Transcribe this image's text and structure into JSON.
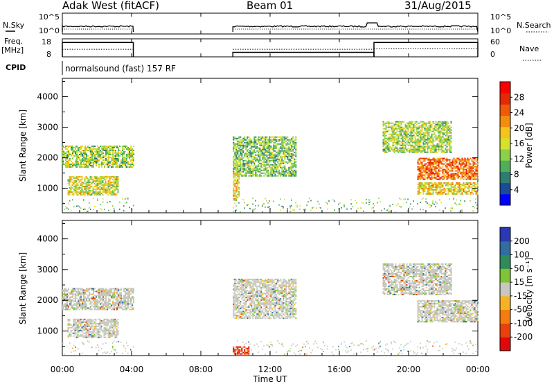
{
  "header": {
    "radar": "Adak West (fitACF)",
    "beam": "Beam 01",
    "date": "31/Aug/2015"
  },
  "side_labels": {
    "nsky": "N.Sky",
    "freq_line1": "Freq.",
    "freq_line2": "[MHz]",
    "cpid": "CPID",
    "nsearch": "N.Search",
    "nave": "Nave"
  },
  "ticks": {
    "nsky_left": [
      "10^5",
      "10^0"
    ],
    "nsky_right": [
      "10^5",
      "10^0"
    ],
    "freq_left": [
      "18",
      "8"
    ],
    "nave_right": [
      "60",
      "0"
    ],
    "range": [
      "1000",
      "2000",
      "3000",
      "4000"
    ],
    "time": [
      "00:00",
      "04:00",
      "08:00",
      "12:00",
      "16:00",
      "20:00",
      "00:00"
    ]
  },
  "cpid_text": "normalsound (fast) 157 RF",
  "colorbars": {
    "power": {
      "label": "Power [dB]",
      "ticks": [
        "4",
        "8",
        "12",
        "16",
        "20",
        "24",
        "28"
      ],
      "colors": [
        "#0000ff",
        "#1a4a9a",
        "#2e7d6e",
        "#4fae5a",
        "#8ad04a",
        "#d6e12e",
        "#f5c319",
        "#f48d0e",
        "#ee5a0a",
        "#e32a07",
        "#ff0000"
      ]
    },
    "velocity": {
      "label": "Velocity [m s⁻¹]",
      "ticks": [
        "200",
        "100",
        "50",
        "15",
        "-15",
        "-50",
        "-100",
        "-200"
      ],
      "colors": [
        "#2a38b5",
        "#2f6e9e",
        "#2e8c58",
        "#7ec436",
        "#c8c8c0",
        "#f5b324",
        "#f57c0e",
        "#e8420a",
        "#e00808"
      ]
    }
  },
  "chart_data": [
    {
      "type": "line",
      "title": "Adak West (fitACF)",
      "subtitle": "Beam 01 — 31/Aug/2015",
      "panel": "N.Sky / N.Search",
      "x_unit": "hours UT",
      "xlim": [
        0,
        24
      ],
      "series": [
        {
          "name": "N.Sky",
          "segments": [
            [
              0,
              4.1
            ],
            [
              9.85,
              24
            ]
          ],
          "level": "about 10^2, rising near 18:00"
        },
        {
          "name": "N.Search",
          "segments": [
            [
              0,
              4.1
            ],
            [
              9.85,
              24
            ]
          ],
          "level": "about 10^1"
        }
      ]
    },
    {
      "type": "line",
      "panel": "Freq. / Nave",
      "x_unit": "hours UT",
      "xlim": [
        0,
        24
      ],
      "series": [
        {
          "name": "Freq.",
          "unit": "MHz",
          "segments": [
            {
              "x": [
                0,
                4.1
              ],
              "y": 16
            },
            {
              "x": [
                9.85,
                18
              ],
              "y": 10.5
            },
            {
              "x": [
                18,
                24
              ],
              "y": 16
            }
          ]
        },
        {
          "name": "Nave",
          "segments": [
            {
              "x": [
                0,
                4.1
              ],
              "y": 25
            },
            {
              "x": [
                9.85,
                18
              ],
              "y": 25
            },
            {
              "x": [
                18,
                24
              ],
              "y": 27
            }
          ]
        }
      ]
    },
    {
      "type": "heatmap",
      "panel": "Power",
      "xlabel": "Time UT",
      "ylabel": "Slant Range [km]",
      "xlim": [
        0,
        24
      ],
      "ylim": [
        200,
        4600
      ],
      "colorbar": "Power [dB]",
      "regions": [
        {
          "t": [
            0,
            4.1
          ],
          "r": [
            1700,
            2400
          ],
          "dB": 14
        },
        {
          "t": [
            0.3,
            3.2
          ],
          "r": [
            800,
            1400
          ],
          "dB": 16
        },
        {
          "t": [
            9.85,
            13.5
          ],
          "r": [
            1400,
            2700
          ],
          "dB": 12
        },
        {
          "t": [
            9.85,
            10.2
          ],
          "r": [
            600,
            1500
          ],
          "dB": 18
        },
        {
          "t": [
            18.5,
            22.5
          ],
          "r": [
            2200,
            3200
          ],
          "dB": 14
        },
        {
          "t": [
            20.5,
            24
          ],
          "r": [
            1300,
            2000
          ],
          "dB": 24
        },
        {
          "t": [
            20.5,
            24
          ],
          "r": [
            800,
            1200
          ],
          "dB": 18
        }
      ]
    },
    {
      "type": "heatmap",
      "panel": "Velocity",
      "xlabel": "Time UT",
      "ylabel": "Slant Range [km]",
      "xlim": [
        0,
        24
      ],
      "ylim": [
        200,
        4600
      ],
      "colorbar": "Velocity [m s⁻¹]",
      "regions": [
        {
          "t": [
            0,
            4.1
          ],
          "r": [
            1700,
            2400
          ],
          "v": 0
        },
        {
          "t": [
            0.3,
            3.2
          ],
          "r": [
            800,
            1400
          ],
          "v": 0
        },
        {
          "t": [
            9.85,
            13.5
          ],
          "r": [
            1400,
            2700
          ],
          "v": 0
        },
        {
          "t": [
            9.85,
            10.8
          ],
          "r": [
            250,
            500
          ],
          "v": -200
        },
        {
          "t": [
            18.5,
            22.5
          ],
          "r": [
            2200,
            3200
          ],
          "v": 0
        },
        {
          "t": [
            20.5,
            24
          ],
          "r": [
            1300,
            2000
          ],
          "v": 0
        }
      ]
    }
  ],
  "xaxis_label": "Time UT",
  "yaxis_label": "Slant Range [km]"
}
